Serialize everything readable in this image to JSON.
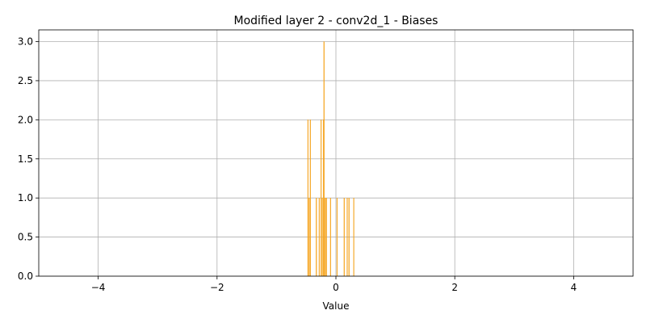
{
  "chart_data": {
    "type": "bar",
    "title": "Modified layer 2 - conv2d_1 - Biases",
    "xlabel": "Value",
    "ylabel": "",
    "xlim": [
      -5,
      5
    ],
    "ylim": [
      0,
      3.15
    ],
    "xticks": [
      -4,
      -2,
      0,
      2,
      4
    ],
    "xtick_labels": [
      "−4",
      "−2",
      "0",
      "2",
      "4"
    ],
    "yticks": [
      0.0,
      0.5,
      1.0,
      1.5,
      2.0,
      2.5,
      3.0
    ],
    "ytick_labels": [
      "0.0",
      "0.5",
      "1.0",
      "1.5",
      "2.0",
      "2.5",
      "3.0"
    ],
    "grid": true,
    "bar_color": "#f5a623",
    "bin_width": 0.012,
    "bins": [
      {
        "x": -0.47,
        "count": 2
      },
      {
        "x": -0.45,
        "count": 1
      },
      {
        "x": -0.43,
        "count": 2
      },
      {
        "x": -0.33,
        "count": 1
      },
      {
        "x": -0.28,
        "count": 1
      },
      {
        "x": -0.25,
        "count": 2
      },
      {
        "x": -0.23,
        "count": 1
      },
      {
        "x": -0.21,
        "count": 2
      },
      {
        "x": -0.2,
        "count": 3
      },
      {
        "x": -0.18,
        "count": 1
      },
      {
        "x": -0.16,
        "count": 1
      },
      {
        "x": -0.09,
        "count": 1
      },
      {
        "x": 0.02,
        "count": 1
      },
      {
        "x": 0.14,
        "count": 1
      },
      {
        "x": 0.19,
        "count": 1
      },
      {
        "x": 0.22,
        "count": 1
      },
      {
        "x": 0.3,
        "count": 1
      }
    ]
  }
}
